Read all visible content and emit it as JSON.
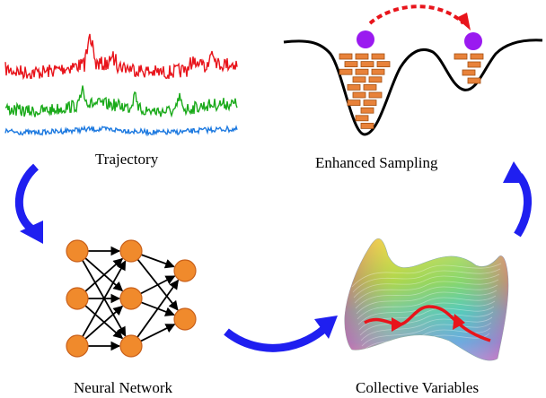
{
  "labels": {
    "trajectory": "Trajectory",
    "enhanced_sampling": "Enhanced Sampling",
    "neural_network": "Neural Network",
    "collective_variables": "Collective Variables"
  },
  "colors": {
    "trajectory_series": [
      "#e8141b",
      "#1aaa1a",
      "#1e7ae0"
    ],
    "neuron_fill": "#f08a2c",
    "neuron_stroke": "#c9601a",
    "brick_fill": "#e8823a",
    "brick_stroke": "#a24f12",
    "particle": "#9a1af0",
    "hop_arrow": "#e8141b",
    "cycle_arrow": "#1f1ff0",
    "cv_path": "#e8141b"
  },
  "neural_network_layers": [
    3,
    3,
    2
  ],
  "icons": [
    "trajectory-plot",
    "double-well-potential",
    "neural-network-graph",
    "free-energy-surface",
    "cycle-arrow"
  ]
}
